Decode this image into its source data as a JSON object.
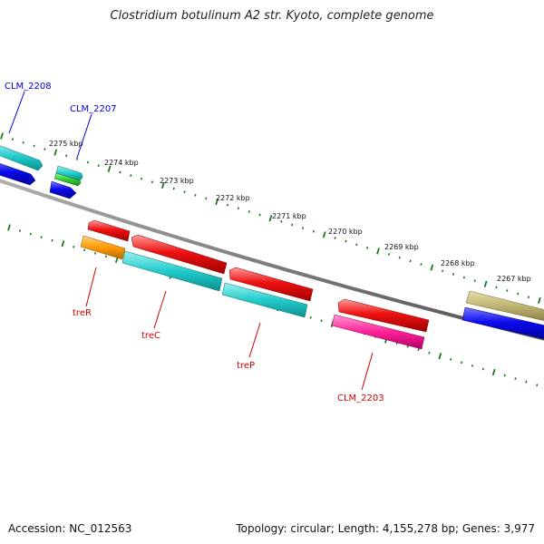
{
  "title": "Clostridium botulinum A2 str. Kyoto, complete genome",
  "footer": {
    "accession": "Accession: NC_012563",
    "summary": "Topology: circular; Length: 4,155,278 bp; Genes: 3,977"
  },
  "ruler_labels": [
    "2275 kbp",
    "2274 kbp",
    "2273 kbp",
    "2272 kbp",
    "2271 kbp",
    "2270 kbp",
    "2269 kbp",
    "2268 kbp",
    "2267 kbp"
  ],
  "gene_labels": {
    "clm2208": "CLM_2208",
    "clm2207": "CLM_2207",
    "treR": "treR",
    "treC": "treC",
    "treP": "treP",
    "clm2203": "CLM_2203"
  },
  "colors": {
    "forward_label": "#0000cc",
    "reverse_label": "#cc0000",
    "ruler": "#1a7a1a",
    "backbone": "#808080"
  }
}
